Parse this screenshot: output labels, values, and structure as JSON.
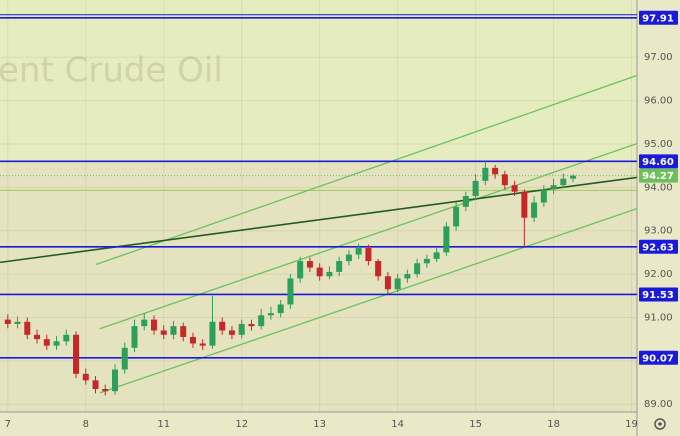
{
  "chart_data": {
    "type": "candlestick",
    "watermark": "ent Crude Oil",
    "xlim": [
      -0.1,
      8.07
    ],
    "ylim": [
      88.82,
      98.32
    ],
    "xticks": [
      {
        "value": 0,
        "label": "7"
      },
      {
        "value": 1,
        "label": "8"
      },
      {
        "value": 2,
        "label": "11"
      },
      {
        "value": 3,
        "label": "12"
      },
      {
        "value": 4,
        "label": "13"
      },
      {
        "value": 5,
        "label": "14"
      },
      {
        "value": 6,
        "label": "15"
      },
      {
        "value": 7,
        "label": "18"
      },
      {
        "value": 8,
        "label": "19"
      }
    ],
    "yticks": [
      {
        "value": 89,
        "label": "89.00"
      },
      {
        "value": 90,
        "label": "90.00"
      },
      {
        "value": 91,
        "label": "91.00"
      },
      {
        "value": 92,
        "label": "92.00"
      },
      {
        "value": 93,
        "label": "93.00"
      },
      {
        "value": 94,
        "label": "94.00"
      },
      {
        "value": 95,
        "label": "95.00"
      },
      {
        "value": 96,
        "label": "96.00"
      },
      {
        "value": 97,
        "label": "97.00"
      }
    ],
    "grid": true,
    "up_color": "#2e9e5b",
    "down_color": "#c62828",
    "x": [
      0,
      0.125,
      0.25,
      0.375,
      0.5,
      0.625,
      0.75,
      0.875,
      1,
      1.125,
      1.25,
      1.375,
      1.5,
      1.625,
      1.75,
      1.875,
      2,
      2.125,
      2.25,
      2.375,
      2.5,
      2.625,
      2.75,
      2.875,
      3,
      3.125,
      3.25,
      3.375,
      3.5,
      3.625,
      3.75,
      3.875,
      4,
      4.125,
      4.25,
      4.375,
      4.5,
      4.625,
      4.75,
      4.875,
      5,
      5.125,
      5.25,
      5.375,
      5.5,
      5.625,
      5.75,
      5.875,
      6,
      6.125,
      6.25,
      6.375,
      6.5,
      6.625,
      6.75,
      6.875,
      7,
      7.125,
      7.25
    ],
    "open": [
      90.95,
      90.85,
      90.9,
      90.6,
      90.5,
      90.35,
      90.45,
      90.6,
      89.7,
      89.55,
      89.35,
      89.3,
      89.8,
      90.3,
      90.8,
      90.95,
      90.7,
      90.6,
      90.8,
      90.55,
      90.4,
      90.35,
      90.9,
      90.7,
      90.6,
      90.85,
      90.8,
      91.05,
      91.1,
      91.3,
      91.9,
      92.3,
      92.15,
      91.95,
      92.05,
      92.3,
      92.45,
      92.6,
      92.3,
      91.95,
      91.65,
      91.9,
      92.0,
      92.25,
      92.35,
      92.5,
      93.1,
      93.55,
      93.8,
      94.15,
      94.45,
      94.3,
      94.05,
      93.9,
      93.3,
      93.65,
      93.95,
      94.05,
      94.2
    ],
    "high": [
      91.07,
      91.02,
      91.0,
      90.72,
      90.6,
      90.57,
      90.72,
      90.68,
      89.82,
      89.65,
      89.45,
      89.92,
      90.42,
      90.95,
      91.1,
      91.05,
      90.82,
      90.92,
      90.88,
      90.65,
      90.5,
      91.5,
      91.0,
      90.8,
      90.95,
      90.95,
      91.2,
      91.25,
      91.4,
      92.0,
      92.4,
      92.38,
      92.25,
      92.18,
      92.4,
      92.55,
      92.7,
      92.68,
      92.35,
      92.05,
      92.0,
      92.1,
      92.35,
      92.45,
      92.6,
      93.2,
      93.65,
      93.9,
      94.3,
      94.6,
      94.52,
      94.38,
      94.15,
      93.95,
      93.8,
      94.05,
      94.2,
      94.32,
      94.3
    ],
    "low": [
      90.75,
      90.75,
      90.5,
      90.4,
      90.25,
      90.25,
      90.35,
      89.6,
      89.45,
      89.25,
      89.2,
      89.22,
      89.7,
      90.2,
      90.7,
      90.6,
      90.5,
      90.5,
      90.45,
      90.3,
      90.25,
      90.28,
      90.6,
      90.5,
      90.52,
      90.7,
      90.72,
      90.95,
      91.0,
      91.2,
      91.8,
      92.05,
      91.85,
      91.88,
      91.95,
      92.2,
      92.35,
      92.2,
      91.85,
      91.55,
      91.58,
      91.8,
      91.92,
      92.15,
      92.28,
      92.42,
      93.0,
      93.45,
      93.7,
      94.05,
      94.2,
      93.95,
      93.8,
      92.63,
      93.2,
      93.55,
      93.85,
      93.98,
      94.12
    ],
    "close": [
      90.85,
      90.9,
      90.6,
      90.5,
      90.35,
      90.45,
      90.6,
      89.7,
      89.55,
      89.35,
      89.3,
      89.8,
      90.3,
      90.8,
      90.95,
      90.7,
      90.6,
      90.8,
      90.55,
      90.4,
      90.35,
      90.9,
      90.7,
      90.6,
      90.85,
      90.8,
      91.05,
      91.1,
      91.3,
      91.9,
      92.3,
      92.15,
      91.95,
      92.05,
      92.3,
      92.45,
      92.6,
      92.3,
      91.95,
      91.65,
      91.9,
      92.0,
      92.25,
      92.35,
      92.5,
      93.1,
      93.55,
      93.8,
      94.15,
      94.45,
      94.3,
      94.05,
      93.9,
      93.3,
      93.65,
      93.95,
      94.05,
      94.2,
      94.27
    ],
    "levels": [
      {
        "value": 97.91,
        "label": "97.91"
      },
      {
        "value": 94.6,
        "label": "94.60"
      },
      {
        "value": 92.63,
        "label": "92.63"
      },
      {
        "value": 91.53,
        "label": "91.53"
      },
      {
        "value": 90.07,
        "label": "90.07"
      }
    ],
    "level_color": "#1a1adb",
    "support_line": {
      "value": 93.93,
      "color": "#9acd5a"
    },
    "last_price": {
      "value": 94.27,
      "label": "94.27",
      "color": "#6dbf5a"
    },
    "trend_lines": [
      {
        "x": [
          1.13,
          8.07
        ],
        "y": [
          92.22,
          96.58
        ],
        "color": "#6cc35a"
      },
      {
        "x": [
          1.18,
          8.07
        ],
        "y": [
          90.74,
          95.01
        ],
        "color": "#6cc35a"
      },
      {
        "x": [
          1.18,
          8.07
        ],
        "y": [
          89.26,
          93.51
        ],
        "color": "#6cc35a"
      },
      {
        "x": [
          -0.1,
          8.07
        ],
        "y": [
          92.27,
          94.23
        ],
        "color": "#1f5e1f"
      }
    ]
  }
}
